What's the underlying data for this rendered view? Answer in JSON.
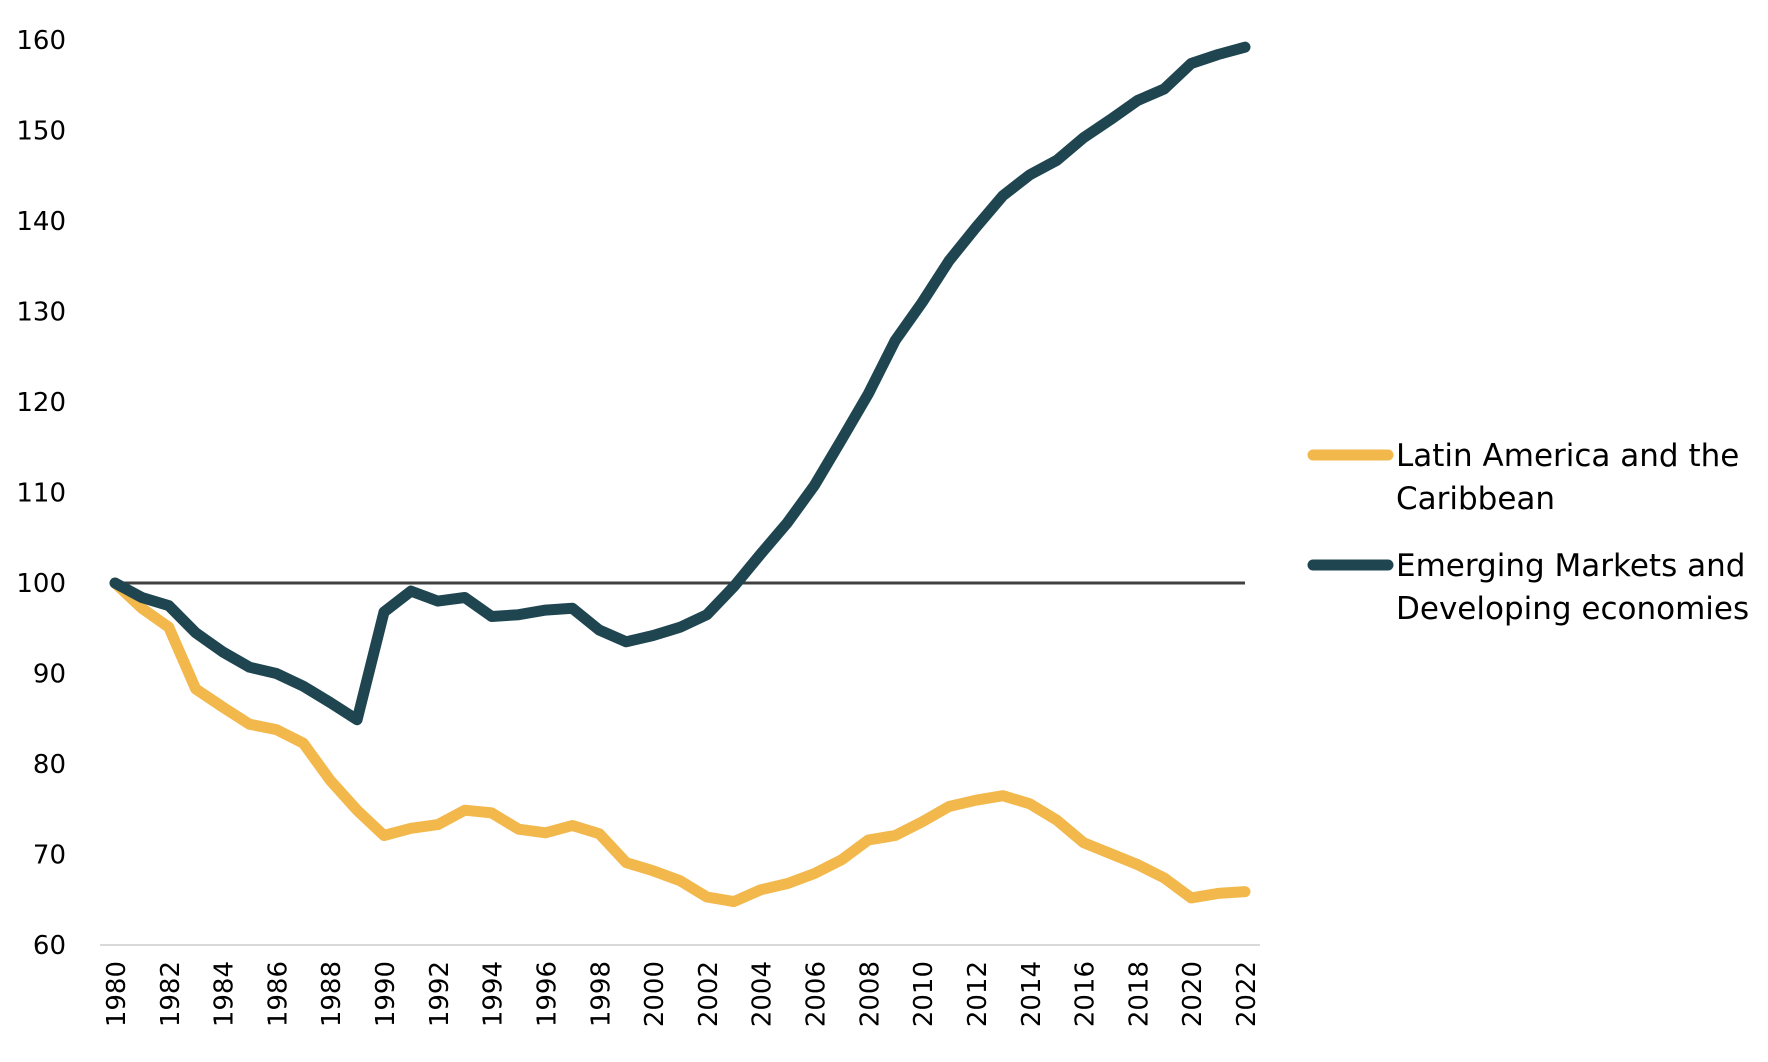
{
  "chart_data": {
    "type": "line",
    "title": "",
    "xlabel": "",
    "ylabel": "",
    "ylim": [
      60,
      160
    ],
    "y_ticks": [
      60,
      70,
      80,
      90,
      100,
      110,
      120,
      130,
      140,
      150,
      160
    ],
    "x_ticks": [
      "1980",
      "1982",
      "1984",
      "1986",
      "1988",
      "1990",
      "1992",
      "1994",
      "1996",
      "1998",
      "2000",
      "2002",
      "2004",
      "2006",
      "2008",
      "2010",
      "2012",
      "2014",
      "2016",
      "2018",
      "2020",
      "2022"
    ],
    "x": [
      1980,
      1981,
      1982,
      1983,
      1984,
      1985,
      1986,
      1987,
      1988,
      1989,
      1990,
      1991,
      1992,
      1993,
      1994,
      1995,
      1996,
      1997,
      1998,
      1999,
      2000,
      2001,
      2002,
      2003,
      2004,
      2005,
      2006,
      2007,
      2008,
      2009,
      2010,
      2011,
      2012,
      2013,
      2014,
      2015,
      2016,
      2017,
      2018,
      2019,
      2020,
      2021,
      2022
    ],
    "reference_line": 100,
    "grid": false,
    "legend_position": "right",
    "series": [
      {
        "name": "Latin America and the Caribbean",
        "color": "#F2B84B",
        "values": [
          100,
          97.2,
          95.1,
          88.3,
          86.3,
          84.4,
          83.8,
          82.3,
          78.2,
          74.9,
          72.1,
          72.9,
          73.3,
          74.9,
          74.6,
          72.8,
          72.4,
          73.2,
          72.3,
          69.1,
          68.2,
          67.1,
          65.3,
          64.8,
          66.1,
          66.8,
          67.9,
          69.4,
          71.6,
          72.1,
          73.6,
          75.3,
          76.0,
          76.5,
          75.6,
          73.8,
          71.3,
          70.1,
          68.9,
          67.4,
          65.2,
          65.7,
          65.9
        ],
        "legend_lines": [
          "Latin America and the",
          "Caribbean"
        ]
      },
      {
        "name": "Emerging Markets and Developing economies",
        "color": "#1F4650",
        "values": [
          100,
          98.4,
          97.5,
          94.5,
          92.4,
          90.7,
          90.0,
          88.6,
          86.8,
          84.9,
          96.8,
          99.1,
          98.0,
          98.4,
          96.3,
          96.5,
          97.0,
          97.2,
          94.8,
          93.5,
          94.2,
          95.1,
          96.5,
          99.6,
          103.2,
          106.7,
          110.8,
          115.8,
          120.9,
          126.8,
          131.0,
          135.6,
          139.3,
          142.8,
          145.1,
          146.7,
          149.2,
          151.2,
          153.3,
          154.6,
          157.4,
          158.4,
          159.2
        ],
        "legend_lines": [
          "Emerging Markets and",
          "Developing economies"
        ]
      }
    ]
  }
}
